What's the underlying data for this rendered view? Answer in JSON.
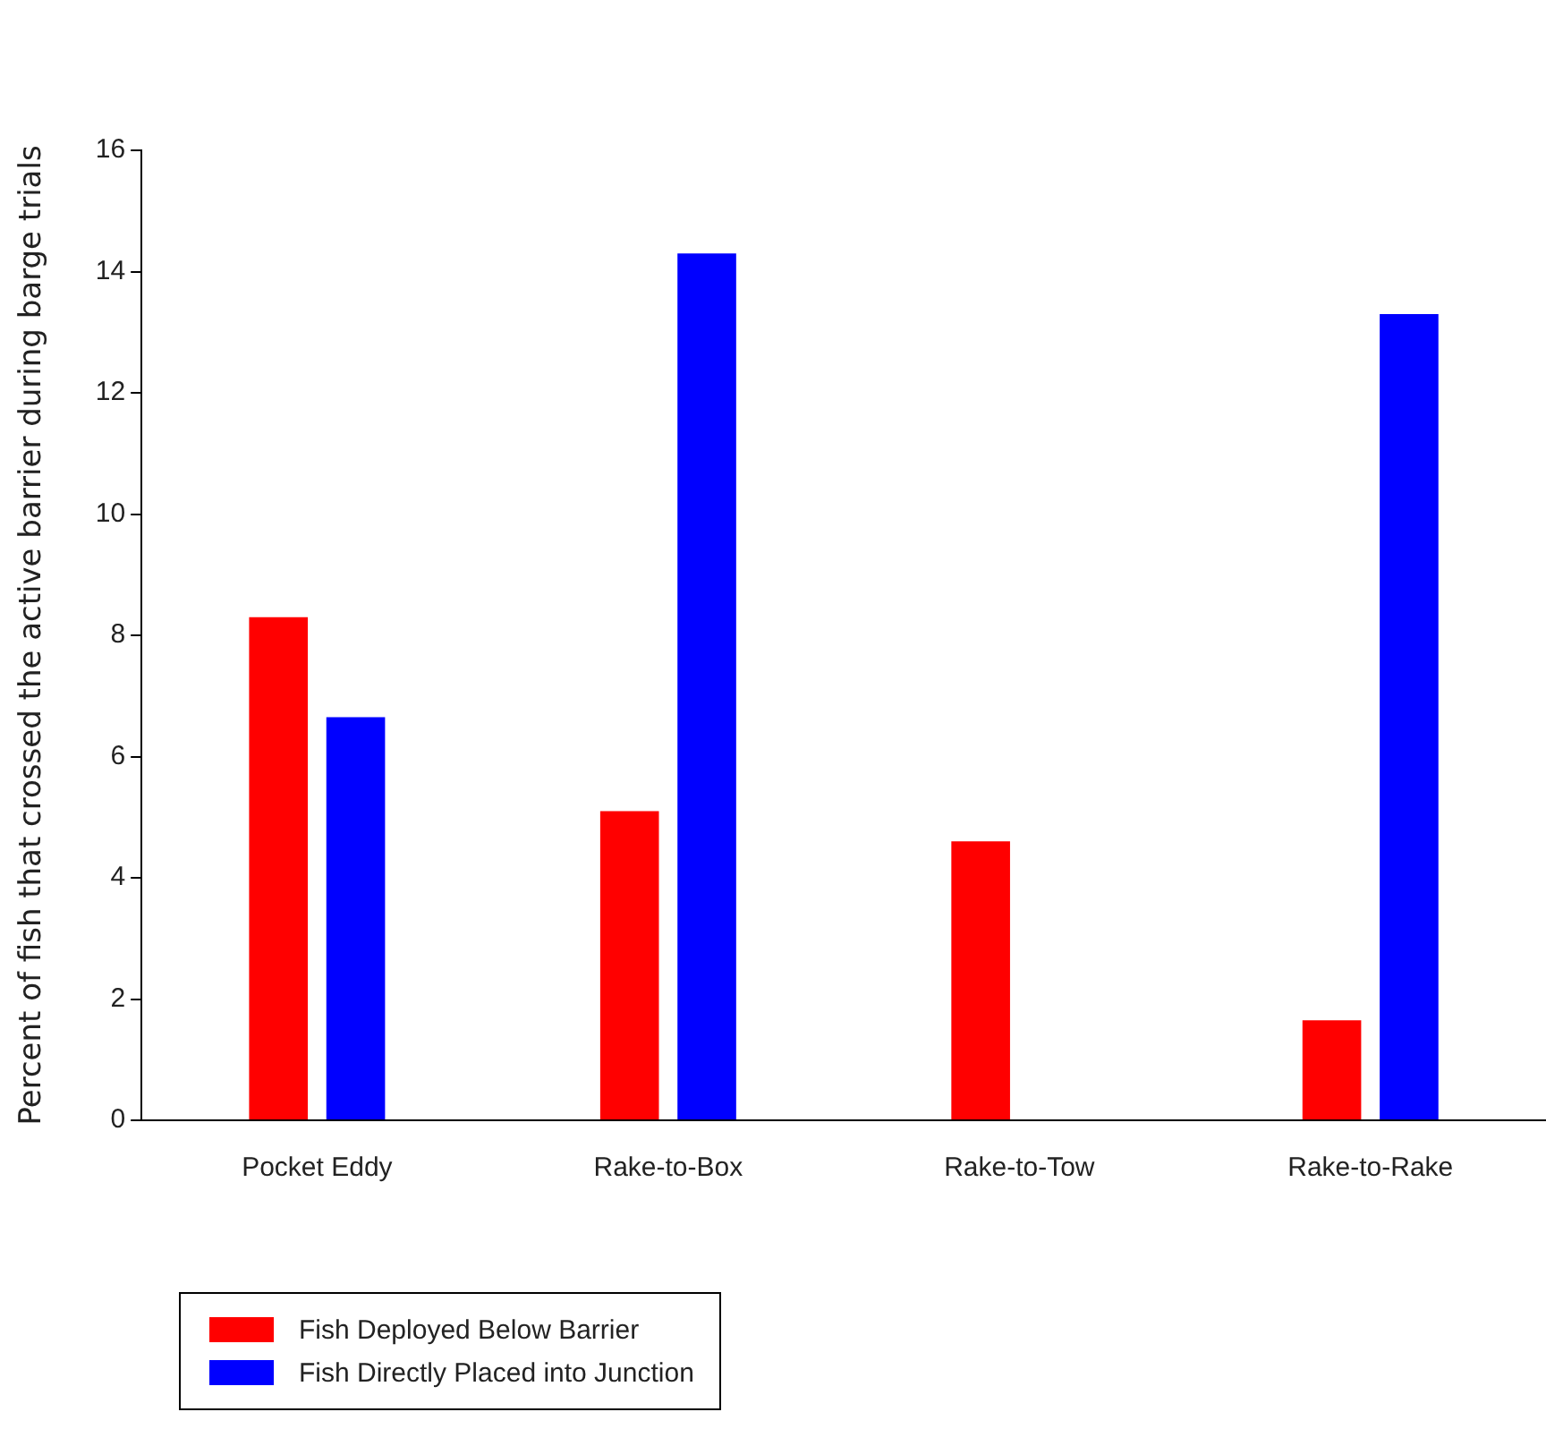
{
  "chart_data": {
    "type": "bar",
    "ylabel": "Percent of fish that crossed the active barrier during barge trials",
    "categories": [
      "Pocket Eddy",
      "Rake-to-Box",
      "Rake-to-Tow",
      "Rake-to-Rake"
    ],
    "series": [
      {
        "name": "Fish Deployed Below Barrier",
        "color": "#ff0000",
        "values": [
          8.3,
          5.1,
          4.6,
          1.65
        ]
      },
      {
        "name": "Fish Directly Placed into Junction",
        "color": "#0000ff",
        "values": [
          6.65,
          14.3,
          0,
          13.3
        ]
      }
    ],
    "ylim": [
      0,
      16
    ],
    "yticks": [
      0,
      2,
      4,
      6,
      8,
      10,
      12,
      14,
      16
    ],
    "grid": false,
    "legend": "bottom left"
  }
}
